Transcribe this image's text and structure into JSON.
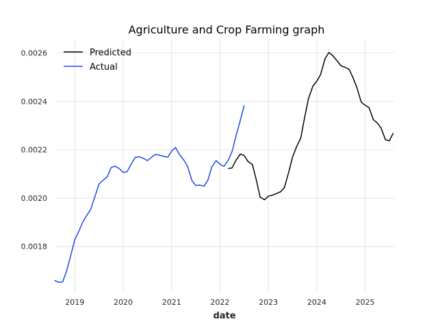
{
  "chart_data": {
    "type": "line",
    "title": "Agriculture and Crop Farming graph",
    "xlabel": "date",
    "ylabel": "",
    "x_ticks": [
      "2019",
      "2020",
      "2021",
      "2022",
      "2023",
      "2024",
      "2025"
    ],
    "y_ticks": [
      "0.0018",
      "0.0020",
      "0.0022",
      "0.0024",
      "0.0026"
    ],
    "xlim": [
      2018.6,
      2025.6
    ],
    "ylim": [
      0.00161,
      0.002655
    ],
    "grid": true,
    "legend_position": "top-left",
    "series": [
      {
        "name": "Predicted",
        "color": "#000000",
        "x": [
          2022.17,
          2022.25,
          2022.33,
          2022.42,
          2022.5,
          2022.58,
          2022.67,
          2022.75,
          2022.83,
          2022.92,
          2023.0,
          2023.08,
          2023.17,
          2023.25,
          2023.33,
          2023.42,
          2023.5,
          2023.58,
          2023.67,
          2023.75,
          2023.83,
          2023.92,
          2024.0,
          2024.08,
          2024.17,
          2024.25,
          2024.33,
          2024.42,
          2024.5,
          2024.58,
          2024.67,
          2024.75,
          2024.83,
          2024.92,
          2025.0,
          2025.08,
          2025.17,
          2025.25,
          2025.33,
          2025.42,
          2025.5,
          2025.58
        ],
        "y": [
          0.002122,
          0.002125,
          0.002156,
          0.002182,
          0.002176,
          0.002151,
          0.002139,
          0.002076,
          0.002004,
          0.001993,
          0.002008,
          0.002012,
          0.002019,
          0.002026,
          0.002043,
          0.002107,
          0.00217,
          0.002211,
          0.002249,
          0.002334,
          0.002412,
          0.002463,
          0.002483,
          0.002511,
          0.002576,
          0.002602,
          0.002589,
          0.002567,
          0.002547,
          0.002541,
          0.002532,
          0.002497,
          0.002456,
          0.002396,
          0.002384,
          0.002374,
          0.002324,
          0.002311,
          0.002289,
          0.002241,
          0.002237,
          0.002269
        ]
      },
      {
        "name": "Actual",
        "color": "#1a47e8",
        "x": [
          2018.58,
          2018.67,
          2018.75,
          2018.83,
          2018.92,
          2019.0,
          2019.08,
          2019.17,
          2019.25,
          2019.33,
          2019.42,
          2019.5,
          2019.58,
          2019.67,
          2019.75,
          2019.83,
          2019.92,
          2020.0,
          2020.08,
          2020.17,
          2020.25,
          2020.33,
          2020.42,
          2020.5,
          2020.58,
          2020.67,
          2020.75,
          2020.83,
          2020.92,
          2021.0,
          2021.08,
          2021.17,
          2021.25,
          2021.33,
          2021.42,
          2021.5,
          2021.58,
          2021.67,
          2021.75,
          2021.83,
          2021.92,
          2022.0,
          2022.08,
          2022.17,
          2022.25,
          2022.33,
          2022.42,
          2022.5
        ],
        "y": [
          0.00166,
          0.001652,
          0.001654,
          0.001698,
          0.001766,
          0.001828,
          0.001862,
          0.001903,
          0.001929,
          0.001954,
          0.002009,
          0.002058,
          0.002073,
          0.002088,
          0.002126,
          0.002132,
          0.002122,
          0.002106,
          0.002109,
          0.002142,
          0.002169,
          0.002171,
          0.002164,
          0.002155,
          0.002168,
          0.002181,
          0.002177,
          0.002173,
          0.002169,
          0.002194,
          0.002209,
          0.002178,
          0.002158,
          0.002131,
          0.002073,
          0.002052,
          0.002054,
          0.002049,
          0.002074,
          0.002129,
          0.002155,
          0.00214,
          0.002131,
          0.002156,
          0.002193,
          0.002256,
          0.002321,
          0.002383
        ]
      }
    ]
  }
}
